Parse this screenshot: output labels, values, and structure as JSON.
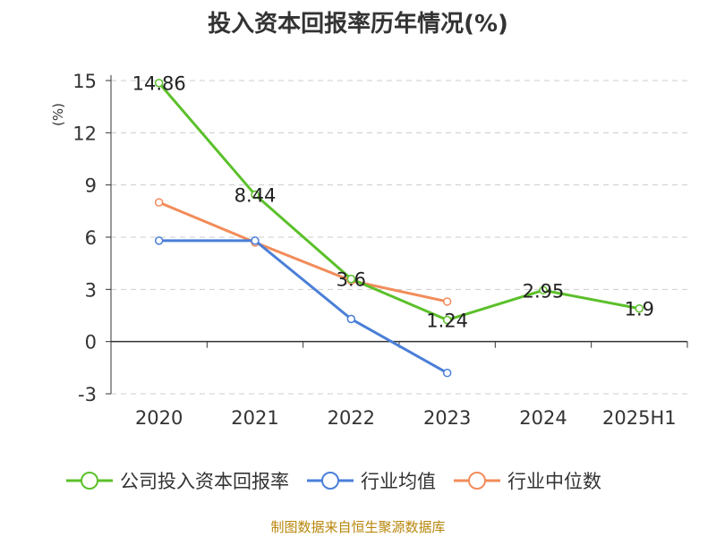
{
  "title": "投入资本回报率历年情况(%)",
  "source": "制图数据来自恒生聚源数据库",
  "colors": {
    "title": "#333333",
    "axis": "#333333",
    "grid": "#cccccc",
    "ylabel": "#cc0000",
    "source": "#b8860b"
  },
  "chart_data": {
    "type": "line",
    "title": "投入资本回报率历年情况(%)",
    "xlabel": "",
    "ylabel": "(%)",
    "categories": [
      "2020",
      "2021",
      "2022",
      "2023",
      "2024",
      "2025H1"
    ],
    "ylim": [
      -3,
      15
    ],
    "yticks": [
      -3,
      0,
      3,
      6,
      9,
      12,
      15
    ],
    "grid": "horizontal-dashed",
    "legend_position": "bottom",
    "series": [
      {
        "name": "公司投入资本回报率",
        "color": "#5bc02a",
        "values": [
          14.86,
          8.44,
          3.6,
          1.24,
          2.95,
          1.9
        ],
        "labels": [
          "14.86",
          "8.44",
          "3.6",
          "1.24",
          "2.95",
          "1.9"
        ]
      },
      {
        "name": "行业均值",
        "color": "#4a7fd8",
        "values": [
          5.8,
          5.8,
          1.3,
          -1.8,
          null,
          null
        ]
      },
      {
        "name": "行业中位数",
        "color": "#f28c5a",
        "values": [
          8.0,
          5.7,
          3.5,
          2.3,
          null,
          null
        ]
      }
    ]
  }
}
